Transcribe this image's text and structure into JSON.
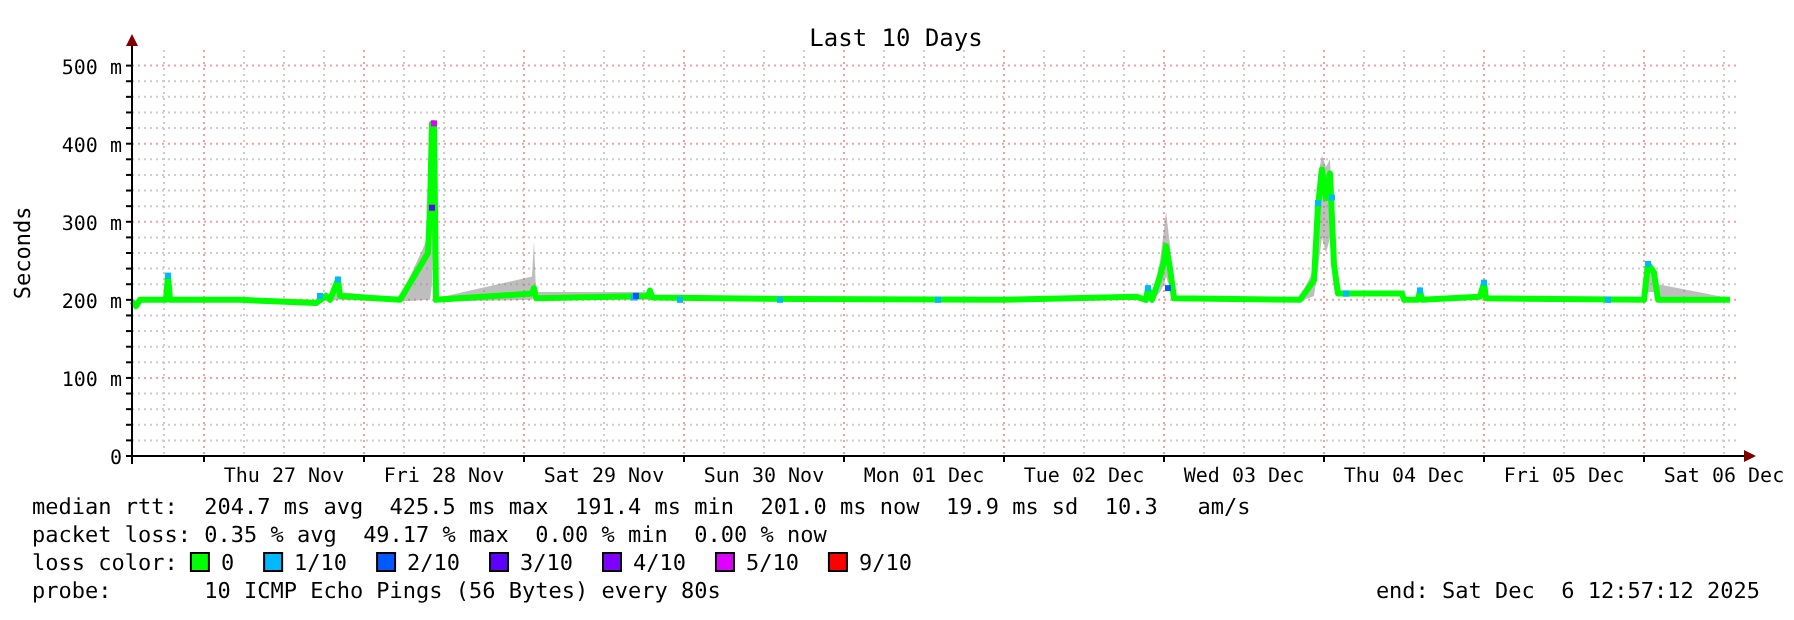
{
  "chart_data": {
    "type": "line",
    "title": "Last 10 Days",
    "ylabel": "Seconds",
    "legend_title": "loss color:",
    "legend": "bottom",
    "grid": true,
    "xlim": [
      "2025-11-26T13:12",
      "2025-12-06T14:24"
    ],
    "ylim": [
      0,
      520
    ],
    "yticks": [
      {
        "value": 0,
        "label": "0"
      },
      {
        "value": 20,
        "label": null
      },
      {
        "value": 40,
        "label": null
      },
      {
        "value": 60,
        "label": null
      },
      {
        "value": 80,
        "label": null
      },
      {
        "value": 100,
        "label": "100 m"
      },
      {
        "value": 120,
        "label": null
      },
      {
        "value": 140,
        "label": null
      },
      {
        "value": 160,
        "label": null
      },
      {
        "value": 180,
        "label": null
      },
      {
        "value": 200,
        "label": "200 m"
      },
      {
        "value": 220,
        "label": null
      },
      {
        "value": 240,
        "label": null
      },
      {
        "value": 260,
        "label": null
      },
      {
        "value": 280,
        "label": null
      },
      {
        "value": 300,
        "label": "300 m"
      },
      {
        "value": 320,
        "label": null
      },
      {
        "value": 340,
        "label": null
      },
      {
        "value": 360,
        "label": null
      },
      {
        "value": 380,
        "label": null
      },
      {
        "value": 400,
        "label": "400 m"
      },
      {
        "value": 420,
        "label": null
      },
      {
        "value": 440,
        "label": null
      },
      {
        "value": 460,
        "label": null
      },
      {
        "value": 480,
        "label": null
      },
      {
        "value": 500,
        "label": "500 m"
      }
    ],
    "xticks": [
      {
        "value": "2025-11-26T18:00",
        "label": null
      },
      {
        "value": "2025-11-27T00:00",
        "label": null
      },
      {
        "value": "2025-11-27T06:00",
        "label": null
      },
      {
        "value": "2025-11-27T12:00",
        "label": "Thu 27 Nov"
      },
      {
        "value": "2025-11-27T18:00",
        "label": null
      },
      {
        "value": "2025-11-28T00:00",
        "label": null
      },
      {
        "value": "2025-11-28T06:00",
        "label": null
      },
      {
        "value": "2025-11-28T12:00",
        "label": "Fri 28 Nov"
      },
      {
        "value": "2025-11-28T18:00",
        "label": null
      },
      {
        "value": "2025-11-29T00:00",
        "label": null
      },
      {
        "value": "2025-11-29T06:00",
        "label": null
      },
      {
        "value": "2025-11-29T12:00",
        "label": "Sat 29 Nov"
      },
      {
        "value": "2025-11-29T18:00",
        "label": null
      },
      {
        "value": "2025-11-30T00:00",
        "label": null
      },
      {
        "value": "2025-11-30T06:00",
        "label": null
      },
      {
        "value": "2025-11-30T12:00",
        "label": "Sun 30 Nov"
      },
      {
        "value": "2025-11-30T18:00",
        "label": null
      },
      {
        "value": "2025-12-01T00:00",
        "label": null
      },
      {
        "value": "2025-12-01T06:00",
        "label": null
      },
      {
        "value": "2025-12-01T12:00",
        "label": "Mon 01 Dec"
      },
      {
        "value": "2025-12-01T18:00",
        "label": null
      },
      {
        "value": "2025-12-02T00:00",
        "label": null
      },
      {
        "value": "2025-12-02T06:00",
        "label": null
      },
      {
        "value": "2025-12-02T12:00",
        "label": "Tue 02 Dec"
      },
      {
        "value": "2025-12-02T18:00",
        "label": null
      },
      {
        "value": "2025-12-03T00:00",
        "label": null
      },
      {
        "value": "2025-12-03T06:00",
        "label": null
      },
      {
        "value": "2025-12-03T12:00",
        "label": "Wed 03 Dec"
      },
      {
        "value": "2025-12-03T18:00",
        "label": null
      },
      {
        "value": "2025-12-04T00:00",
        "label": null
      },
      {
        "value": "2025-12-04T06:00",
        "label": null
      },
      {
        "value": "2025-12-04T12:00",
        "label": "Thu 04 Dec"
      },
      {
        "value": "2025-12-04T18:00",
        "label": null
      },
      {
        "value": "2025-12-05T00:00",
        "label": null
      },
      {
        "value": "2025-12-05T06:00",
        "label": null
      },
      {
        "value": "2025-12-05T12:00",
        "label": "Fri 05 Dec"
      },
      {
        "value": "2025-12-05T18:00",
        "label": null
      },
      {
        "value": "2025-12-06T00:00",
        "label": null
      },
      {
        "value": "2025-12-06T06:00",
        "label": null
      },
      {
        "value": "2025-12-06T12:00",
        "label": "Sat 06 Dec"
      }
    ],
    "series": [
      {
        "name": "0",
        "color": "#00ff00",
        "x": [
          "2025-11-26T13:12",
          "2025-11-26T13:48",
          "2025-11-26T14:24",
          "2025-11-26T18:18",
          "2025-11-26T18:36",
          "2025-11-26T18:54",
          "2025-11-27T05:24",
          "2025-11-27T16:48",
          "2025-11-27T18:18",
          "2025-11-27T18:54",
          "2025-11-27T20:06",
          "2025-11-27T20:24",
          "2025-11-28T05:24",
          "2025-11-28T09:36",
          "2025-11-28T09:54",
          "2025-11-28T10:12",
          "2025-11-28T10:30",
          "2025-11-28T10:48",
          "2025-11-29T01:12",
          "2025-11-29T01:30",
          "2025-11-29T01:48",
          "2025-11-29T18:36",
          "2025-11-29T18:54",
          "2025-11-29T19:12",
          "2025-11-30T17:24",
          "2025-12-01T23:24",
          "2025-12-02T19:48",
          "2025-12-02T21:18",
          "2025-12-02T21:36",
          "2025-12-02T22:12",
          "2025-12-02T23:24",
          "2025-12-03T00:00",
          "2025-12-03T00:18",
          "2025-12-03T00:54",
          "2025-12-03T01:30",
          "2025-12-03T20:24",
          "2025-12-03T22:30",
          "2025-12-03T23:06",
          "2025-12-03T23:42",
          "2025-12-04T00:18",
          "2025-12-04T00:54",
          "2025-12-04T01:30",
          "2025-12-04T02:06",
          "2025-12-04T11:42",
          "2025-12-04T12:00",
          "2025-12-04T14:06",
          "2025-12-04T14:24",
          "2025-12-04T14:42",
          "2025-12-04T23:24",
          "2025-12-05T00:00",
          "2025-12-05T00:18",
          "2025-12-06T00:00",
          "2025-12-06T00:36",
          "2025-12-06T01:30",
          "2025-12-06T02:06",
          "2025-12-06T12:54"
        ],
        "values": [
          198,
          192,
          200,
          200,
          231,
          200,
          200,
          196,
          205,
          200,
          226,
          205,
          200,
          260,
          318,
          426,
          426,
          200,
          208,
          215,
          202,
          205,
          212,
          203,
          201,
          200,
          204,
          200,
          215,
          200,
          230,
          250,
          269,
          240,
          202,
          200,
          225,
          320,
          367,
          330,
          362,
          245,
          208,
          208,
          200,
          200,
          212,
          200,
          204,
          222,
          202,
          200,
          246,
          235,
          200,
          200
        ],
        "lower": [
          196,
          190,
          198,
          198,
          200,
          198,
          198,
          194,
          200,
          198,
          200,
          200,
          198,
          200,
          200,
          220,
          300,
          198,
          200,
          205,
          200,
          200,
          200,
          200,
          199,
          198,
          200,
          198,
          200,
          198,
          210,
          220,
          230,
          215,
          200,
          198,
          205,
          240,
          280,
          260,
          280,
          215,
          205,
          205,
          198,
          198,
          205,
          198,
          200,
          205,
          200,
          198,
          210,
          210,
          198,
          198
        ],
        "upper": [
          200,
          195,
          202,
          202,
          235,
          202,
          202,
          200,
          210,
          202,
          230,
          210,
          202,
          280,
          330,
          430,
          430,
          202,
          230,
          275,
          210,
          210,
          215,
          206,
          203,
          202,
          206,
          202,
          220,
          202,
          250,
          290,
          313,
          270,
          205,
          202,
          240,
          360,
          385,
          370,
          380,
          265,
          210,
          210,
          202,
          202,
          215,
          202,
          206,
          225,
          205,
          202,
          250,
          240,
          220,
          202
        ]
      },
      {
        "name": "1/10",
        "color": "#00b8ff",
        "type": "scatter",
        "marker": "square",
        "x": [
          "2025-11-26T18:36",
          "2025-11-27T17:24",
          "2025-11-27T20:06",
          "2025-11-29T16:30",
          "2025-11-29T23:24",
          "2025-11-30T14:24",
          "2025-12-01T14:06",
          "2025-12-02T21:36",
          "2025-12-03T23:06",
          "2025-12-04T01:12",
          "2025-12-04T03:18",
          "2025-12-04T14:24",
          "2025-12-05T00:00",
          "2025-12-05T18:36",
          "2025-12-06T00:36"
        ],
        "values": [
          231,
          205,
          226,
          203,
          200,
          200,
          200,
          215,
          324,
          331,
          208,
          212,
          222,
          200,
          246
        ]
      },
      {
        "name": "2/10",
        "color": "#0059ff",
        "type": "scatter",
        "marker": "square",
        "x": [
          "2025-11-29T16:48",
          "2025-12-03T00:36"
        ],
        "values": [
          205,
          215
        ]
      },
      {
        "name": "3/10",
        "color": "#5e00ff",
        "type": "scatter",
        "marker": "square",
        "x": [
          "2025-11-28T10:12"
        ],
        "values": [
          318
        ]
      },
      {
        "name": "4/10",
        "color": "#7e00ff",
        "type": "scatter"
      },
      {
        "name": "5/10",
        "color": "#dd00ff",
        "type": "scatter",
        "marker": "square",
        "x": [
          "2025-11-28T10:30"
        ],
        "values": [
          426
        ]
      },
      {
        "name": "9/10",
        "color": "#ff0000",
        "type": "scatter"
      }
    ],
    "annotations": [
      "median rtt:  204.7 ms avg  425.5 ms max  191.4 ms min  201.0 ms now  19.9 ms sd  10.3   am/s",
      "packet loss: 0.35 % avg  49.17 % max  0.00 % min  0.00 % now",
      "probe:       10 ICMP Echo Pings (56 Bytes) every 80s",
      "end: Sat Dec  6 12:57:12 2025"
    ]
  }
}
